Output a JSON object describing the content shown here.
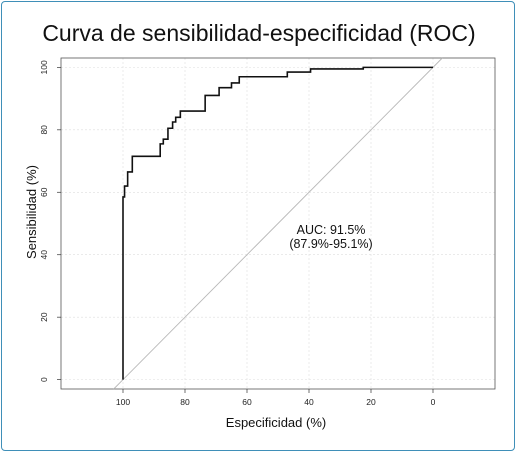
{
  "chart_data": {
    "type": "line",
    "title": "Curva de sensibilidad-especificidad (ROC)",
    "xlabel": "Especificidad (%)",
    "ylabel": "Sensibilidad (%)",
    "x_reversed": true,
    "xlim": [
      120,
      -20
    ],
    "ylim": [
      -3,
      103
    ],
    "x_ticks": [
      "100",
      "80",
      "60",
      "40",
      "20",
      "0"
    ],
    "y_ticks": [
      "0",
      "20",
      "40",
      "60",
      "80",
      "100"
    ],
    "grid": true,
    "annotation": {
      "line1": "AUC: 91.5%",
      "line2": "(87.9%-95.1%)"
    },
    "series": [
      {
        "x": [
          100,
          100,
          99.5,
          99.5,
          98.5,
          98.5,
          97,
          97,
          95.5,
          95.5,
          88,
          88,
          87,
          87,
          85.5,
          85.5,
          84,
          84,
          83,
          83,
          81.5,
          81.5,
          80,
          80,
          77,
          77,
          73.5,
          73.5,
          69,
          69,
          65,
          65,
          62.5,
          62.5,
          60.5,
          60.5,
          47,
          47,
          39.5,
          39.5,
          22.5,
          22.5,
          0
        ],
        "y": [
          0,
          58.5,
          58.5,
          62,
          62,
          66.5,
          66.5,
          71.5,
          71.5,
          71.5,
          71.5,
          75.5,
          75.5,
          77,
          77,
          80.5,
          80.5,
          82.5,
          82.5,
          84,
          84,
          86,
          86,
          86,
          86,
          86,
          86,
          91,
          91,
          93.5,
          93.5,
          95,
          95,
          97,
          97,
          97,
          97,
          98.5,
          98.5,
          99.5,
          99.5,
          100,
          100
        ]
      }
    ]
  }
}
